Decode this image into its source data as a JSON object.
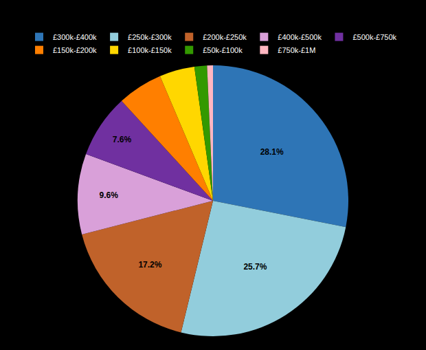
{
  "chart_data": {
    "type": "pie",
    "categories": [
      "£300k-£400k",
      "£250k-£300k",
      "£200k-£250k",
      "£400k-£500k",
      "£500k-£750k",
      "£150k-£200k",
      "£100k-£150k",
      "£50k-£100k",
      "£750k-£1M"
    ],
    "values": [
      28.1,
      25.7,
      17.2,
      9.6,
      7.6,
      5.4,
      4.2,
      1.5,
      0.7
    ],
    "value_labels": [
      "28.1%",
      "25.7%",
      "17.2%",
      "9.6%",
      "7.6%",
      null,
      null,
      null,
      null
    ],
    "colors": [
      "#2E75B6",
      "#92CDDC",
      "#C0622A",
      "#D9A0D9",
      "#7030A0",
      "#FF7F00",
      "#FFD700",
      "#339900",
      "#FFB6C1"
    ],
    "data_labels": true,
    "legend": "upper center"
  }
}
